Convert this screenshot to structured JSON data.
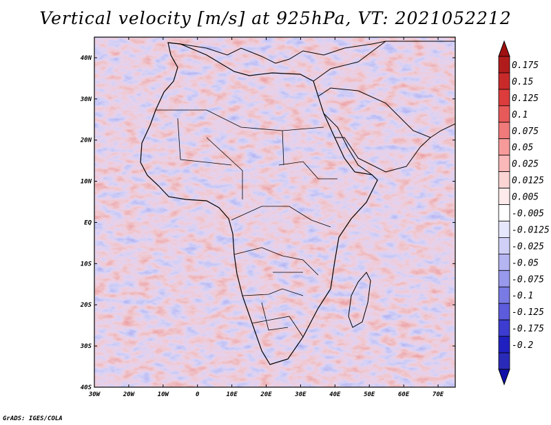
{
  "title": "Vertical velocity [m/s] at 925hPa, VT: 2021052212",
  "credit": "GrADS: IGES/COLA",
  "map": {
    "lon_min": -30,
    "lon_max": 75,
    "lat_min": -40,
    "lat_max": 45,
    "lon_ticks": [
      {
        "v": -30,
        "label": "30W"
      },
      {
        "v": -20,
        "label": "20W"
      },
      {
        "v": -10,
        "label": "10W"
      },
      {
        "v": 0,
        "label": "0"
      },
      {
        "v": 10,
        "label": "10E"
      },
      {
        "v": 20,
        "label": "20E"
      },
      {
        "v": 30,
        "label": "30E"
      },
      {
        "v": 40,
        "label": "40E"
      },
      {
        "v": 50,
        "label": "50E"
      },
      {
        "v": 60,
        "label": "60E"
      },
      {
        "v": 70,
        "label": "70E"
      }
    ],
    "lat_ticks": [
      {
        "v": 40,
        "label": "40N"
      },
      {
        "v": 30,
        "label": "30N"
      },
      {
        "v": 20,
        "label": "20N"
      },
      {
        "v": 10,
        "label": "10N"
      },
      {
        "v": 0,
        "label": "EQ"
      },
      {
        "v": -10,
        "label": "10S"
      },
      {
        "v": -20,
        "label": "20S"
      },
      {
        "v": -30,
        "label": "30S"
      },
      {
        "v": -40,
        "label": "40S"
      }
    ]
  },
  "colorbar": {
    "levels": [
      {
        "label": "0.175",
        "color": "#b01c1c"
      },
      {
        "label": "0.15",
        "color": "#c82a2a"
      },
      {
        "label": "0.125",
        "color": "#dc3c3c"
      },
      {
        "label": "0.1",
        "color": "#e85a5a"
      },
      {
        "label": "0.075",
        "color": "#f07a7a"
      },
      {
        "label": "0.05",
        "color": "#f69a9a"
      },
      {
        "label": "0.025",
        "color": "#fab8b8"
      },
      {
        "label": "0.0125",
        "color": "#fcd4d4"
      },
      {
        "label": "0.005",
        "color": "#feeaea"
      },
      {
        "label": "-0.005",
        "color": "#ffffff"
      },
      {
        "label": "-0.0125",
        "color": "#e6e6fc"
      },
      {
        "label": "-0.025",
        "color": "#cfcff8"
      },
      {
        "label": "-0.05",
        "color": "#b5b5f2"
      },
      {
        "label": "-0.075",
        "color": "#9898ec"
      },
      {
        "label": "-0.1",
        "color": "#7a7ae4"
      },
      {
        "label": "-0.125",
        "color": "#5c5cdc"
      },
      {
        "label": "-0.175",
        "color": "#3c3cd0"
      },
      {
        "label": "-0.2",
        "color": "#2020c0"
      }
    ],
    "top_color": "#a01010",
    "bottom_color": "#1010a8",
    "lowest_color": "#2a2ab8"
  }
}
